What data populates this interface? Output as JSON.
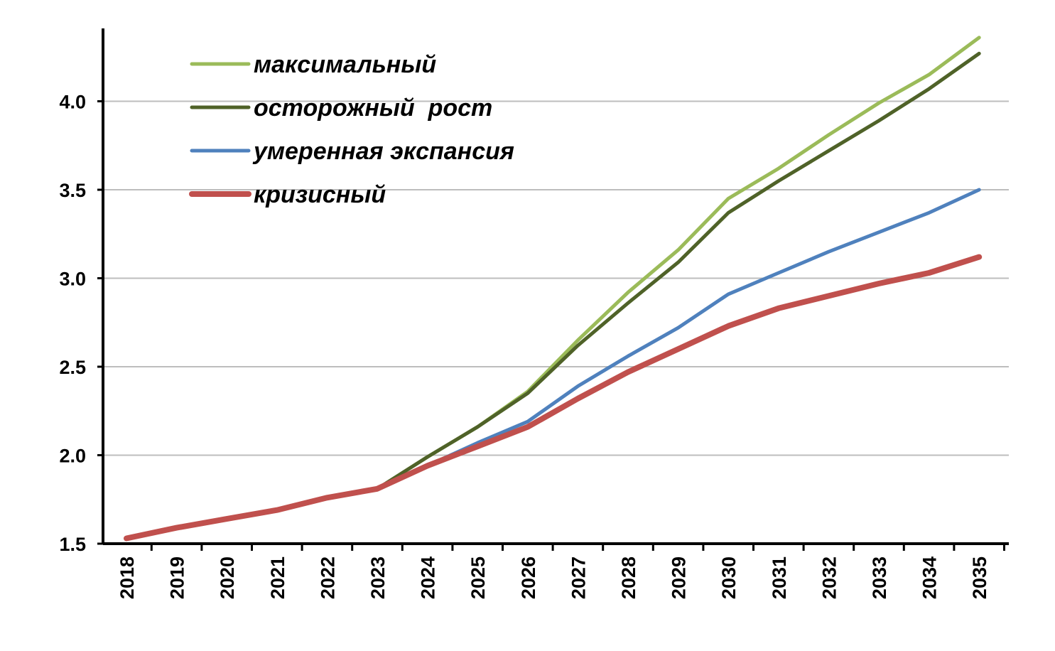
{
  "chart_data": {
    "type": "line",
    "title": "",
    "xlabel": "",
    "ylabel": "",
    "categories": [
      "2018",
      "2019",
      "2020",
      "2021",
      "2022",
      "2023",
      "2024",
      "2025",
      "2026",
      "2027",
      "2028",
      "2029",
      "2030",
      "2031",
      "2032",
      "2033",
      "2034",
      "2035"
    ],
    "ylim": [
      1.5,
      4.4
    ],
    "yticks": [
      "1.5",
      "2.0",
      "2.5",
      "3.0",
      "3.5",
      "4.0"
    ],
    "ytick_values": [
      1.5,
      2.0,
      2.5,
      3.0,
      3.5,
      4.0
    ],
    "grid": true,
    "legend_position": "top-left",
    "series": [
      {
        "name": "максимальный",
        "color": "#9bbb59",
        "values": [
          1.53,
          1.59,
          1.64,
          1.69,
          1.76,
          1.81,
          1.99,
          2.16,
          2.36,
          2.65,
          2.92,
          3.16,
          3.45,
          3.62,
          3.81,
          3.99,
          4.15,
          4.36
        ]
      },
      {
        "name": "осторожный  рост",
        "color": "#4f6228",
        "values": [
          1.53,
          1.59,
          1.64,
          1.69,
          1.76,
          1.81,
          1.99,
          2.16,
          2.35,
          2.62,
          2.86,
          3.09,
          3.37,
          3.55,
          3.72,
          3.89,
          4.07,
          4.27
        ]
      },
      {
        "name": "умеренная экспансия",
        "color": "#4f81bd",
        "values": [
          1.53,
          1.59,
          1.64,
          1.69,
          1.76,
          1.81,
          1.94,
          2.07,
          2.19,
          2.39,
          2.56,
          2.72,
          2.91,
          3.03,
          3.15,
          3.26,
          3.37,
          3.5
        ]
      },
      {
        "name": "кризисный",
        "color": "#c0504d",
        "values": [
          1.53,
          1.59,
          1.64,
          1.69,
          1.76,
          1.81,
          1.94,
          2.05,
          2.16,
          2.32,
          2.47,
          2.6,
          2.73,
          2.83,
          2.9,
          2.97,
          3.03,
          3.12
        ]
      }
    ]
  }
}
